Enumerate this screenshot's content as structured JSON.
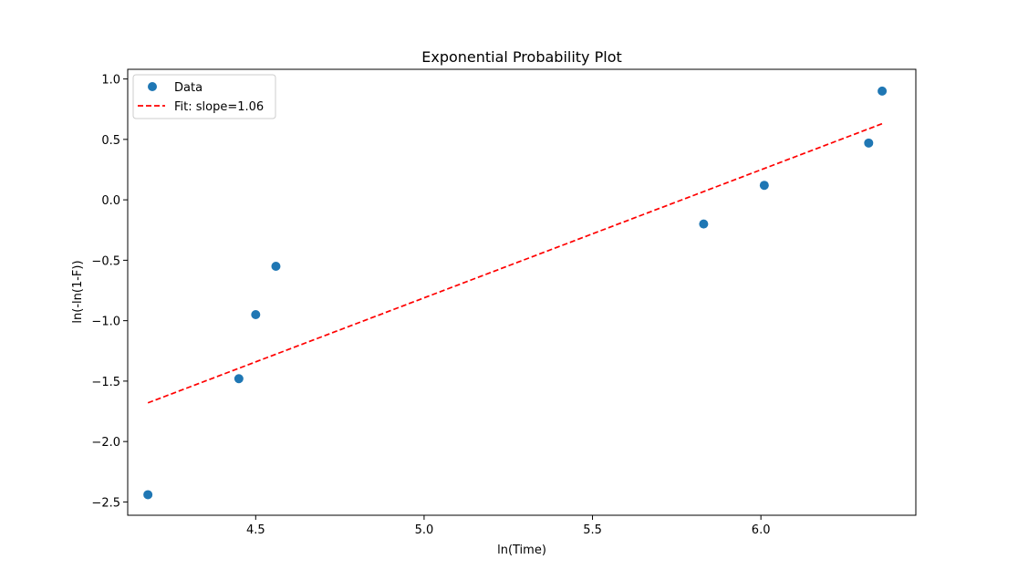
{
  "chart_data": {
    "type": "scatter",
    "title": "Exponential Probability Plot",
    "xlabel": "ln(Time)",
    "ylabel": "ln(-ln(1-F))",
    "xlim": [
      4.12,
      6.46
    ],
    "ylim": [
      -2.61,
      1.08
    ],
    "xticks": [
      4.5,
      5.0,
      5.5,
      6.0
    ],
    "xtick_labels": [
      "4.5",
      "5.0",
      "5.5",
      "6.0"
    ],
    "yticks": [
      1.0,
      0.5,
      0.0,
      -0.5,
      -1.0,
      -1.5,
      -2.0,
      -2.5
    ],
    "ytick_labels": [
      "1.0",
      "0.5",
      "0.0",
      "−0.5",
      "−1.0",
      "−1.5",
      "−2.0",
      "−2.5"
    ],
    "grid": false,
    "legend_position": "upper-left",
    "series": [
      {
        "name": "Data",
        "kind": "points",
        "color": "#1f77b4",
        "x": [
          4.18,
          4.45,
          4.5,
          4.56,
          5.83,
          6.01,
          6.32,
          6.36
        ],
        "y": [
          -2.44,
          -1.48,
          -0.95,
          -0.55,
          -0.2,
          0.12,
          0.47,
          0.9
        ]
      },
      {
        "name": "Fit: slope=1.06",
        "kind": "dashed-line",
        "color": "#ff0000",
        "x": [
          4.18,
          6.36
        ],
        "y": [
          -1.68,
          0.63
        ]
      }
    ]
  }
}
